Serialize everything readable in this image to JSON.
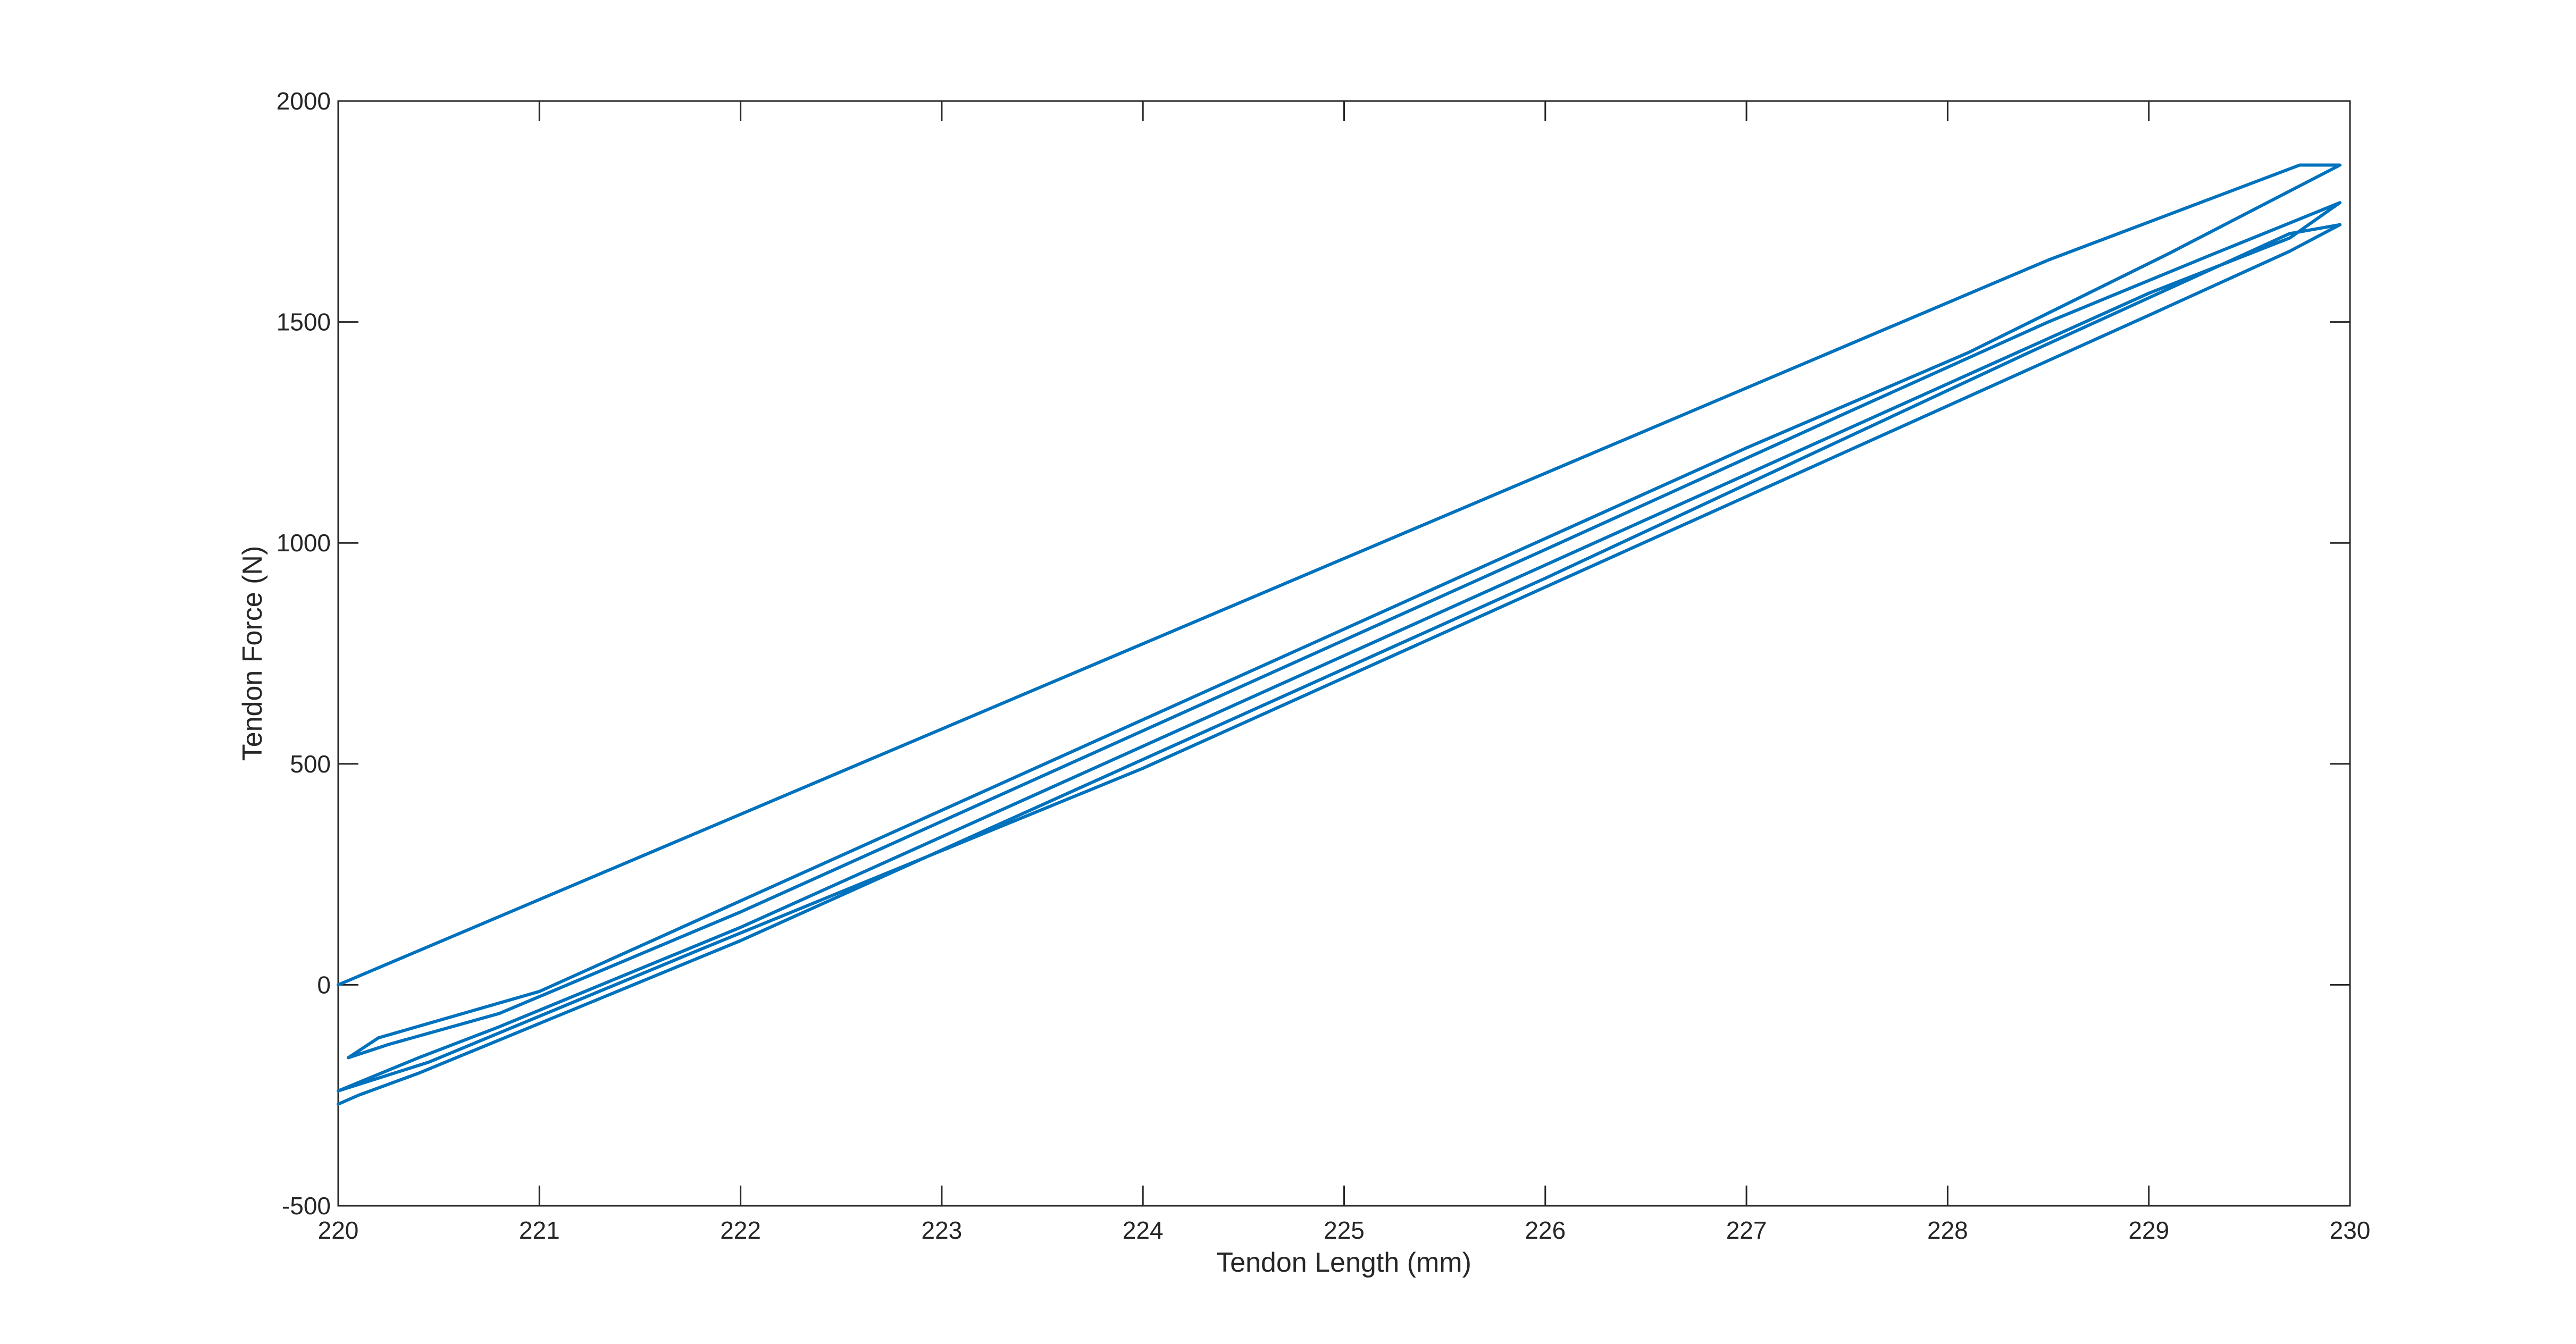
{
  "chart_data": {
    "type": "line",
    "title": "",
    "xlabel": "Tendon Length (mm)",
    "ylabel": "Tendon Force (N)",
    "xlim": [
      220,
      230
    ],
    "ylim": [
      -500,
      2000
    ],
    "xticks": [
      220,
      221,
      222,
      223,
      224,
      225,
      226,
      227,
      228,
      229,
      230
    ],
    "yticks": [
      -500,
      0,
      500,
      1000,
      1500,
      2000
    ],
    "grid": false,
    "legend": "none",
    "series": [
      {
        "color": "#0072bd",
        "x": [
          220.0,
          228.5,
          229.75,
          229.95,
          229.1,
          228.1,
          227.0,
          225.0,
          223.0,
          221.0,
          220.2,
          220.05,
          220.25,
          220.8,
          222.0,
          224.0,
          226.0,
          227.5,
          228.5,
          229.3,
          229.95,
          229.7,
          229.0,
          228.0,
          226.0,
          224.0,
          222.0,
          220.8,
          220.4,
          220.0,
          220.45,
          221.8,
          224.0,
          226.0,
          228.0,
          229.0,
          229.7,
          229.95,
          229.7,
          228.4,
          226.0,
          224.0,
          222.0,
          220.4,
          220.1,
          220.0
        ],
        "y": [
          0,
          1640,
          1855,
          1855,
          1655,
          1430,
          1215,
          805,
          395,
          -15,
          -120,
          -165,
          -135,
          -65,
          165,
          575,
          985,
          1295,
          1500,
          1650,
          1770,
          1690,
          1565,
          1360,
          950,
          540,
          130,
          -95,
          -165,
          -240,
          -175,
          80,
          490,
          900,
          1310,
          1515,
          1660,
          1720,
          1700,
          1430,
          920,
          510,
          100,
          -200,
          -250,
          -270
        ]
      }
    ]
  }
}
